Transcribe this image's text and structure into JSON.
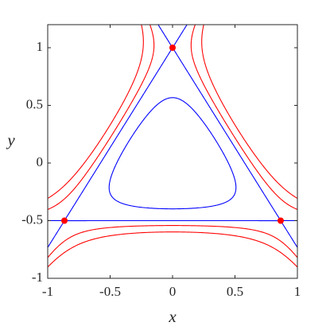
{
  "chart_data": {
    "type": "contour",
    "xlabel": "x",
    "ylabel": "y",
    "xlim": [
      -1,
      1
    ],
    "ylim": [
      -1,
      1.2
    ],
    "xticks": [
      -1,
      -0.5,
      0,
      0.5,
      1
    ],
    "yticks": [
      -1,
      -0.5,
      0,
      0.5,
      1
    ],
    "contours": [
      {
        "level": 0.1,
        "color": "#0000ff",
        "dashed": false
      },
      {
        "level": 0.1667,
        "color": "#0000ff",
        "dashed": false
      },
      {
        "level": 0.2,
        "color": "#ff0000",
        "dashed": true
      },
      {
        "level": 0.25,
        "color": "#ff0000",
        "dashed": true
      }
    ],
    "points": {
      "x": [
        0,
        -0.866,
        0.866
      ],
      "y": [
        1,
        -0.5,
        -0.5
      ],
      "color": "#ff0000"
    }
  }
}
